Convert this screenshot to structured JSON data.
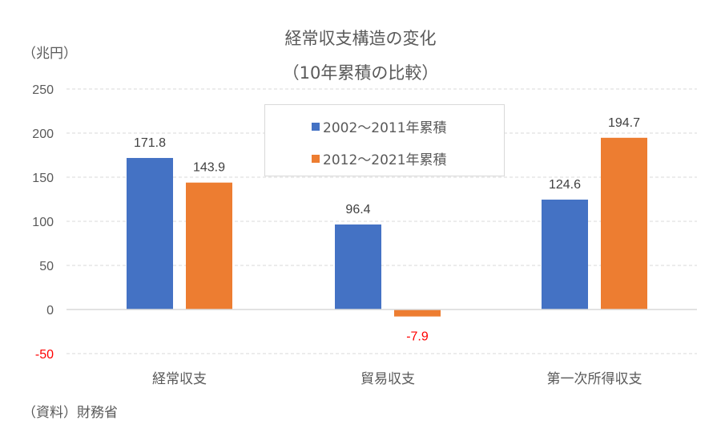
{
  "chart_data": {
    "type": "bar",
    "title": "経常収支構造の変化",
    "subtitle": "（10年累積の比較）",
    "ylabel": "（兆円）",
    "xlabel": "",
    "categories": [
      "経常収支",
      "貿易収支",
      "第一次所得収支"
    ],
    "series": [
      {
        "name": "2002〜2011年累積",
        "color": "#4472C4",
        "values": [
          171.8,
          96.4,
          124.6
        ],
        "labels": [
          "171.8",
          "96.4",
          "124.6"
        ]
      },
      {
        "name": "2012〜2021年累積",
        "color": "#ED7D31",
        "values": [
          143.9,
          -7.9,
          194.7
        ],
        "labels": [
          "143.9",
          "-7.9",
          "194.7"
        ]
      }
    ],
    "ylim": [
      -50,
      250
    ],
    "yticks": [
      250,
      200,
      150,
      100,
      50,
      0,
      -50
    ],
    "ytick_labels": [
      "250",
      "200",
      "150",
      "100",
      "50",
      "0",
      "-50"
    ],
    "negative_color": "#FF0000",
    "grid": true,
    "legend_position": "top-center",
    "source": "（資料）財務省"
  }
}
